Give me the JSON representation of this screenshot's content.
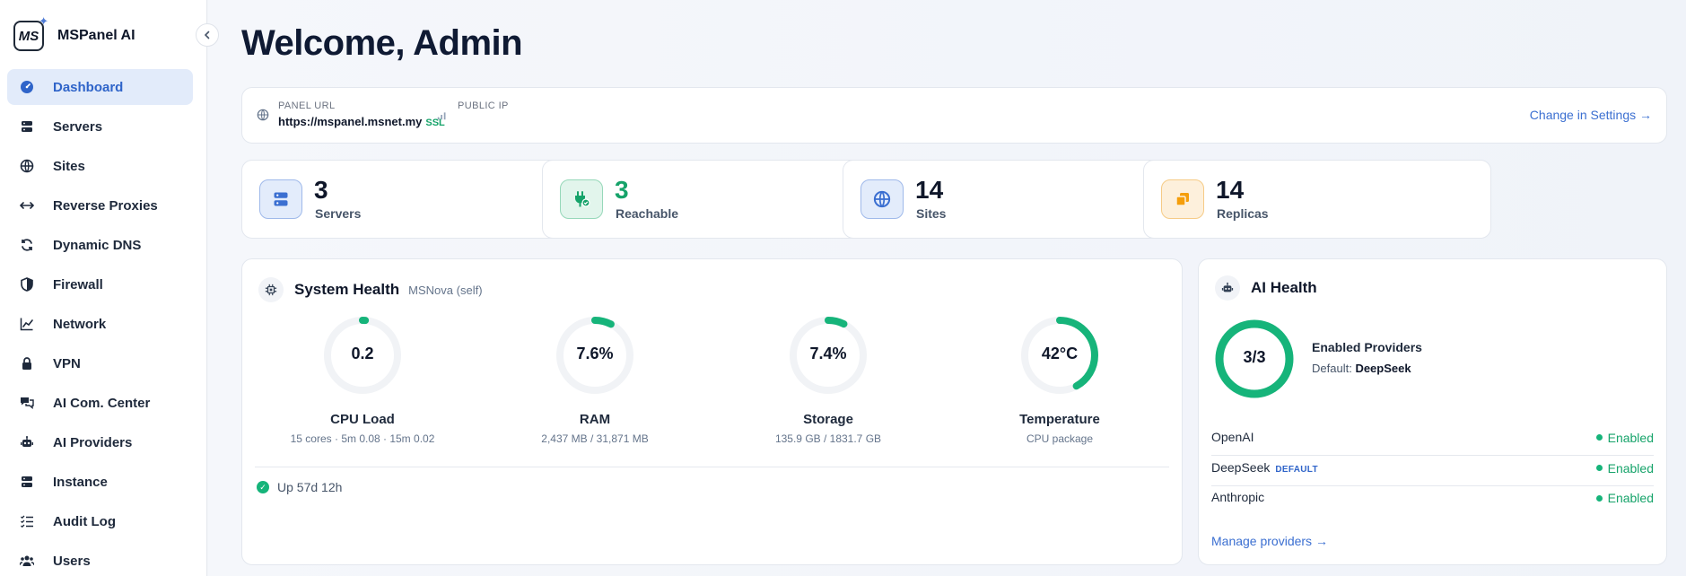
{
  "brand": {
    "name": "MSPanel AI",
    "logo_text": "MS"
  },
  "sidebar": {
    "items": [
      {
        "label": "Dashboard",
        "icon": "gauge-icon",
        "active": true
      },
      {
        "label": "Servers",
        "icon": "server-icon"
      },
      {
        "label": "Sites",
        "icon": "globe-icon"
      },
      {
        "label": "Reverse Proxies",
        "icon": "arrows-icon"
      },
      {
        "label": "Dynamic DNS",
        "icon": "refresh-icon"
      },
      {
        "label": "Firewall",
        "icon": "shield-icon"
      },
      {
        "label": "Network",
        "icon": "chart-line-icon"
      },
      {
        "label": "VPN",
        "icon": "lock-icon"
      },
      {
        "label": "AI Com. Center",
        "icon": "chat-icon"
      },
      {
        "label": "AI Providers",
        "icon": "robot-icon"
      },
      {
        "label": "Instance",
        "icon": "server-icon"
      },
      {
        "label": "Audit Log",
        "icon": "checklist-icon"
      },
      {
        "label": "Users",
        "icon": "users-icon"
      }
    ]
  },
  "page": {
    "title": "Welcome, Admin"
  },
  "info_bar": {
    "panel_url_label": "PANEL URL",
    "panel_url": "https://mspanel.msnet.my",
    "ssl": "SSL",
    "public_ip_label": "PUBLIC IP",
    "public_ip": "",
    "change_link": "Change in Settings →"
  },
  "stats": [
    {
      "value": "3",
      "label": "Servers",
      "icon": "server-icon",
      "color": "#3b6fd1",
      "bg": "#e3ecfb",
      "border": "#9fb9ea"
    },
    {
      "value": "3",
      "label": "Reachable",
      "icon": "plug-icon",
      "color": "#16a36a",
      "bg": "#e2f5ec",
      "border": "#96d8b9"
    },
    {
      "value": "14",
      "label": "Sites",
      "icon": "globe-icon",
      "color": "#3b6fd1",
      "bg": "#e3ecfb",
      "border": "#9fb9ea"
    },
    {
      "value": "14",
      "label": "Replicas",
      "icon": "copy-icon",
      "color": "#f59e0b",
      "bg": "#fdf0dc",
      "border": "#f6cb86"
    }
  ],
  "system_health": {
    "title": "System Health",
    "subtitle": "MSNova (self)",
    "gauges": [
      {
        "value": "0.2",
        "name": "CPU Load",
        "detail": "15 cores · 5m 0.08 · 15m 0.02",
        "fraction": 0.013
      },
      {
        "value": "7.6%",
        "name": "RAM",
        "detail": "2,437 MB / 31,871 MB",
        "fraction": 0.076
      },
      {
        "value": "7.4%",
        "name": "Storage",
        "detail": "135.9 GB / 1831.7 GB",
        "fraction": 0.074
      },
      {
        "value": "42°C",
        "name": "Temperature",
        "detail": "CPU package",
        "fraction": 0.42
      }
    ],
    "uptime": "Up 57d 12h",
    "accent": "#16b47a"
  },
  "ai_health": {
    "title": "AI Health",
    "ring_value": "3/3",
    "fraction": 1.0,
    "summary_title": "Enabled Providers",
    "default_label": "Default:",
    "default_provider": "DeepSeek",
    "providers": [
      {
        "name": "OpenAI",
        "badge": "",
        "status": "Enabled"
      },
      {
        "name": "DeepSeek",
        "badge": "DEFAULT",
        "status": "Enabled"
      },
      {
        "name": "Anthropic",
        "badge": "",
        "status": "Enabled"
      }
    ],
    "manage_link": "Manage providers →"
  }
}
